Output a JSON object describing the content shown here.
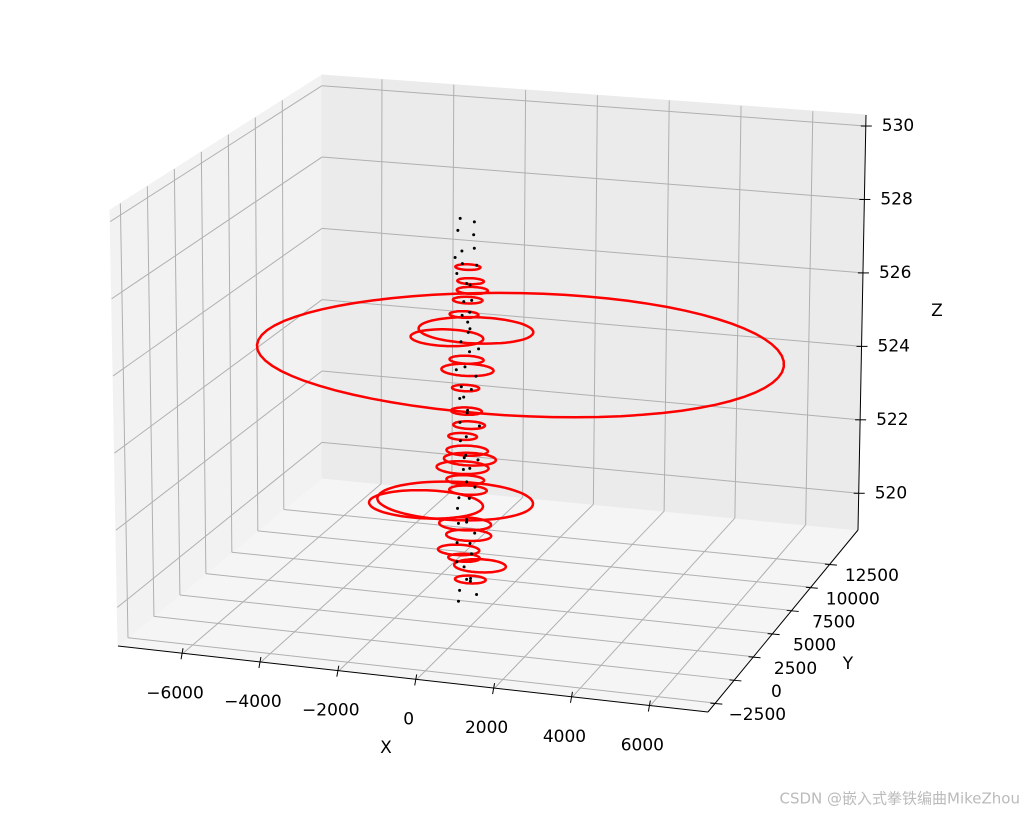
{
  "chart_data": {
    "type": "scatter3d",
    "xlabel": "X",
    "ylabel": "Y",
    "zlabel": "Z",
    "xlim": [
      -7670,
      7480
    ],
    "ylim": [
      -3460,
      16180
    ],
    "zlim": [
      519,
      530.3
    ],
    "xticks": [
      {
        "value": -6000,
        "label": "−6000"
      },
      {
        "value": -4000,
        "label": "−4000"
      },
      {
        "value": -2000,
        "label": "−2000"
      },
      0,
      2000,
      4000,
      6000
    ],
    "yticks": [
      {
        "value": -2500,
        "label": "−2500"
      },
      0,
      2500,
      5000,
      7500,
      10000,
      12500
    ],
    "zticks": [
      520,
      522,
      524,
      526,
      528,
      530
    ],
    "grid": true,
    "circles": {
      "color": "#ff0000",
      "x": [
        -670,
        -1970,
        -2790,
        -2200,
        -2200,
        -2200,
        -2200,
        -2200,
        -2350,
        -2100,
        -2520,
        -3350,
        -2250,
        -2400,
        -1835,
        -2100,
        -2050,
        -2250,
        -2150,
        -2300,
        -2200,
        -2250,
        -2150,
        -2300,
        -2200,
        -2150,
        -2250
      ],
      "y": [
        10900,
        11000,
        11100,
        11000,
        11000,
        11000,
        10900,
        11000,
        11100,
        10900,
        11000,
        11100,
        11000,
        10900,
        11000,
        11000,
        10900,
        11000,
        11100,
        11000,
        10900,
        11000,
        11000,
        10900,
        11100,
        11000,
        10900
      ],
      "z": [
        524.3,
        524.8,
        524.5,
        526.5,
        525.6,
        523.7,
        522.6,
        521.5,
        521.0,
        521.3,
        520.1,
        519.9,
        519.5,
        518.8,
        518.4,
        518.0,
        525.9,
        520.7,
        526.1,
        525.2,
        524.0,
        523.2,
        522.2,
        521.9,
        520.4,
        519.2,
        518.6
      ],
      "r": [
        6970,
        1515,
        960,
        330,
        390,
        690,
        410,
        550,
        690,
        690,
        2070,
        1515,
        690,
        550,
        690,
        410,
        410,
        500,
        350,
        380,
        450,
        360,
        420,
        380,
        500,
        600,
        420
      ]
    },
    "points": {
      "color": "#000000",
      "x": [
        -2310,
        -2080,
        -2450,
        -2150,
        -1950,
        -2390,
        -2220,
        -2040,
        -2500,
        -2180,
        -2270,
        -1990,
        -2360,
        -2120,
        -2430,
        -2060,
        -2210,
        -2330,
        -1900,
        -2250,
        -2140,
        -2480,
        -2020,
        -2290,
        -2170,
        -2410,
        -2090,
        -2230,
        -2350,
        -1970,
        -2200,
        -2440,
        -2110,
        -2280,
        -2050,
        -2380,
        -2160,
        -2010,
        -2320,
        -2240,
        -2460,
        -2130,
        -2260,
        -1960,
        -2340,
        -2190,
        -2070,
        -2420,
        -2300,
        -2100,
        -2150,
        -2370,
        -2030,
        -2470,
        -2200,
        -2250,
        -1980,
        -2330,
        -2120,
        -2400
      ],
      "y": [
        10600,
        11200,
        10900,
        11400,
        10700,
        11100,
        10500,
        11300,
        11000,
        10800,
        11500,
        10600,
        11200,
        10900,
        11300,
        10700,
        11100,
        10800,
        11000,
        11400,
        10500,
        10900,
        11200,
        10700,
        11300,
        11000,
        10600,
        11100,
        10800,
        11400,
        10900,
        11200,
        10500,
        11000,
        10700,
        11300,
        10800,
        11100,
        10600,
        11400,
        11000,
        10700,
        11200,
        10900,
        10500,
        11300,
        11000,
        10800,
        11100,
        10600,
        11200,
        10900,
        11400,
        10700,
        11000,
        10800,
        11300,
        10600,
        11100,
        10900
      ],
      "z": [
        527.9,
        527.7,
        527.5,
        527.3,
        527.1,
        526.9,
        526.7,
        526.5,
        526.3,
        526.1,
        525.9,
        525.7,
        525.5,
        525.3,
        525.1,
        524.9,
        524.7,
        524.5,
        524.3,
        524.1,
        523.9,
        523.7,
        523.5,
        523.3,
        523.1,
        522.9,
        522.7,
        522.5,
        522.3,
        522.1,
        521.9,
        521.7,
        521.5,
        521.3,
        521.1,
        520.9,
        520.7,
        520.5,
        520.3,
        520.1,
        519.9,
        519.7,
        519.5,
        519.3,
        519.1,
        518.9,
        518.7,
        518.5,
        518.3,
        518.1,
        517.9,
        517.7,
        517.5,
        526.8,
        525.0,
        523.0,
        521.2,
        519.6,
        518.0,
        517.4
      ]
    },
    "watermark": "CSDN @嵌入式拳铁编曲MikeZhou"
  }
}
